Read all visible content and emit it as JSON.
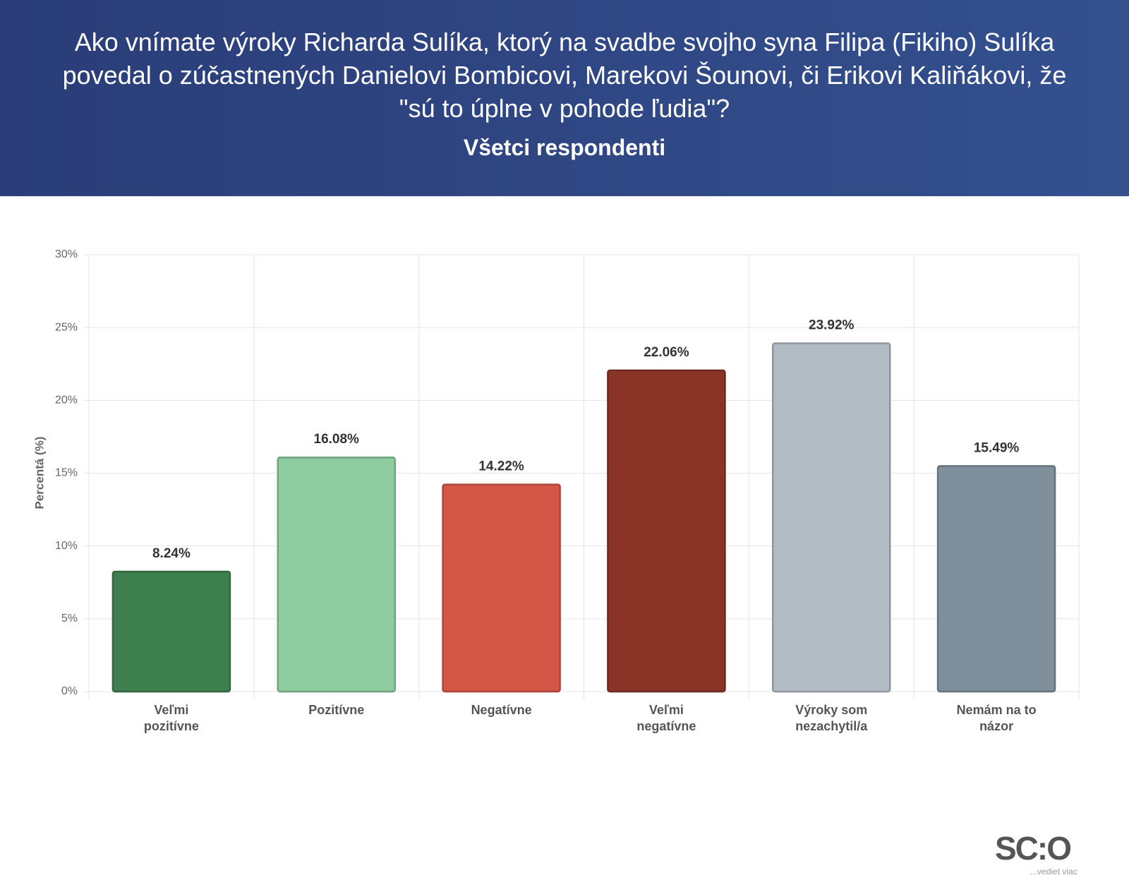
{
  "chart_data": {
    "type": "bar",
    "title": "Ako vnímate výroky Richarda Sulíka, ktorý na svadbe svojho syna Filipa (Fikiho) Sulíka povedal o zúčastnených Danielovi Bombicovi, Marekovi Šounovi, či Erikovi Kaliňákovi, že \"sú to úplne v pohode ľudia\"?",
    "subtitle": "Všetci respondenti",
    "y_label": "Percentá (%)",
    "categories": [
      "Veľmi pozitívne",
      "Pozitívne",
      "Negatívne",
      "Veľmi negatívne",
      "Výroky som nezachytil/a",
      "Nemám na to názor"
    ],
    "values": [
      8.24,
      16.08,
      14.22,
      22.06,
      23.92,
      15.49
    ],
    "value_labels": [
      "8.24%",
      "16.08%",
      "14.22%",
      "22.06%",
      "23.92%",
      "15.49%"
    ],
    "colors": [
      "#3e7f4f",
      "#8ecc9f",
      "#d45646",
      "#8a3428",
      "#b3bcc5",
      "#7f8f9c"
    ],
    "ylim": [
      0,
      30
    ],
    "yticks": [
      {
        "value": 0,
        "label": "0%"
      },
      {
        "value": 5,
        "label": "5%"
      },
      {
        "value": 10,
        "label": "10%"
      },
      {
        "value": 15,
        "label": "15%"
      },
      {
        "value": 20,
        "label": "20%"
      },
      {
        "value": 25,
        "label": "25%"
      },
      {
        "value": 30,
        "label": "30%"
      }
    ],
    "grid": true,
    "logo": {
      "text": "SC:O",
      "tagline": "...vediet viac"
    }
  }
}
